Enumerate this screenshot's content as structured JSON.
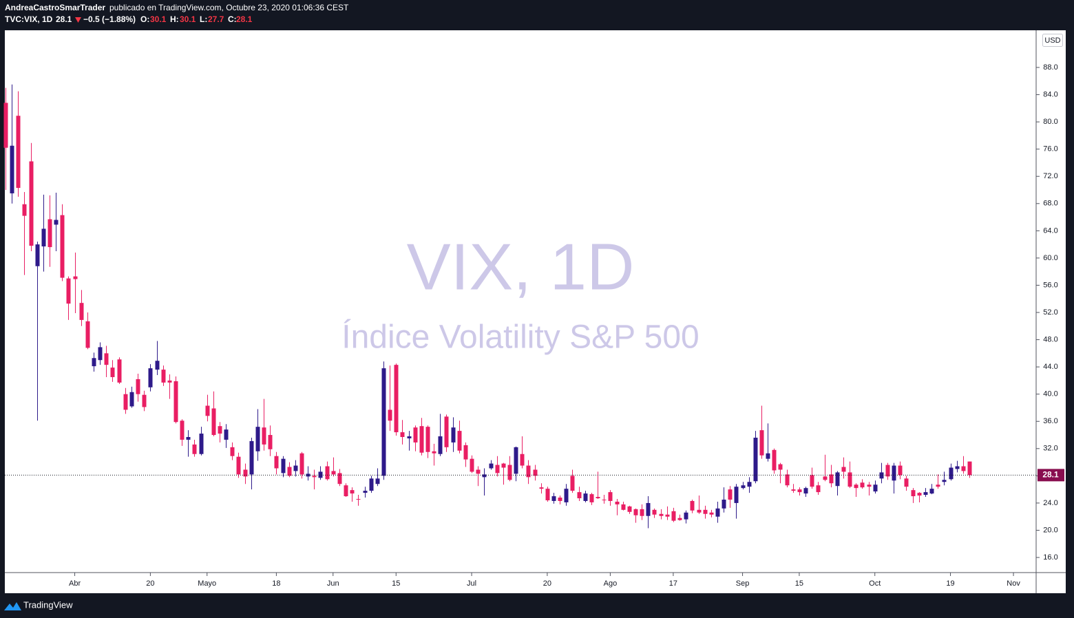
{
  "header": {
    "author": "AndreaCastroSmarTrader",
    "published": "publicado en TradingView.com, Octubre 23, 2020 01:06:36 CEST",
    "symbol": "TVC:VIX, 1D",
    "change": "−0.5 (−1.88%)",
    "open_label": "O:",
    "high_label": "H:",
    "low_label": "L:",
    "close_label": "C:"
  },
  "footer": {
    "brand": "TradingView"
  },
  "chart_data": {
    "type": "candlestick",
    "watermark_title": "VIX, 1D",
    "watermark_subtitle": "Índice Volatility S&P 500",
    "currency": "USD",
    "up_color": "#2e1a8a",
    "down_color": "#e91e63",
    "open": [
      82.8,
      69.5,
      80.9,
      67.9,
      74.2,
      58.8,
      61.7,
      65.7,
      64.9,
      66.3,
      57,
      57.3,
      53.4,
      50.7,
      44.1,
      45,
      46,
      43.9,
      45.1,
      40,
      38.2,
      42.2,
      39.9,
      41,
      43.6,
      43.6,
      42,
      41.9,
      36.1,
      33.3,
      32.6,
      31.2,
      38.3,
      37.9,
      35.3,
      33.3,
      32.2,
      30.8,
      28.9,
      28.2,
      31.6,
      35.1,
      34,
      30.9,
      28.4,
      29.3,
      28.7,
      31.3,
      27.9,
      28,
      27.7,
      29.4,
      28.7,
      28.4,
      26.6,
      25.9,
      24.6,
      25.5,
      25.8,
      26.8,
      28,
      37.7,
      44.3,
      34.4,
      33.5,
      35.1,
      35.3,
      35.2,
      31.6,
      31.2,
      36.7,
      32.9,
      34.6,
      32.5,
      30.5,
      28.9,
      27.8,
      29.1,
      29.6,
      29.8,
      29.6,
      28.3,
      31.2,
      29.5,
      28.9,
      26.3,
      26.1,
      24.3,
      24.8,
      24.1,
      28,
      25.6,
      24.3,
      25.3,
      24.9,
      24.5,
      25.6,
      24.2,
      23.8,
      23.5,
      23.1,
      23.1,
      22.1,
      23,
      22.4,
      22.3,
      22.8,
      21.8,
      21.6,
      24.3,
      23,
      23,
      22.6,
      22,
      23.2,
      26,
      24,
      26.2,
      26.4,
      27.2,
      34.7,
      30.5,
      31.8,
      29.7,
      28.2,
      26,
      26,
      25.4,
      28.1,
      26.6,
      27.9,
      28.2,
      26.5,
      29.3,
      28.5,
      26.7,
      27,
      26.7,
      25.7,
      27.6,
      29.6,
      27.3,
      29.5,
      27.6,
      25.9,
      25.5,
      25.2,
      25.4,
      26.7,
      27.1,
      27.5,
      29,
      29.4,
      30.1
    ],
    "high": [
      85,
      85.5,
      84.5,
      69.7,
      76.9,
      62.4,
      69.3,
      69.2,
      69.6,
      67.9,
      57.3,
      60.8,
      55.3,
      52,
      46.1,
      47.6,
      47.1,
      45,
      45.4,
      40.9,
      41.1,
      43,
      40.5,
      44.4,
      47.8,
      44.2,
      42.9,
      42.6,
      36.3,
      34.7,
      33.3,
      35.2,
      39.9,
      40.4,
      35.9,
      35.6,
      32.9,
      31.4,
      29.8,
      33.6,
      37.8,
      39.3,
      35.4,
      31.5,
      30.9,
      30,
      30.3,
      31.5,
      29.4,
      28.9,
      29.4,
      30.1,
      30.7,
      29,
      26.9,
      26.3,
      25.2,
      26.4,
      28,
      29.1,
      44.8,
      44.2,
      44.5,
      36.2,
      34.6,
      35.4,
      36.5,
      35.4,
      32.7,
      37.1,
      37,
      36.6,
      36.1,
      32.9,
      31,
      29.4,
      29.1,
      30.3,
      30.9,
      29.9,
      30.9,
      32.3,
      33.8,
      30.3,
      29.6,
      26.9,
      26.4,
      25.5,
      25.1,
      26.8,
      28.9,
      26.4,
      25.8,
      25.5,
      28.6,
      25.2,
      25.9,
      24.6,
      24.2,
      23.6,
      23.2,
      23.8,
      25,
      23.2,
      23.1,
      23.5,
      23.3,
      22.3,
      22.9,
      24.5,
      25.1,
      23.6,
      23,
      24.2,
      26.3,
      26.5,
      26.8,
      27.1,
      27.8,
      34.6,
      38.3,
      35.7,
      32,
      29.9,
      28.9,
      26.8,
      26.3,
      26.4,
      29.2,
      27.1,
      31.1,
      29.6,
      28.7,
      30.7,
      30.1,
      26.9,
      27.5,
      27.1,
      27.3,
      29.9,
      29.9,
      29.9,
      30.1,
      28,
      26.2,
      25.6,
      26.2,
      26.8,
      28.2,
      28.6,
      29.8,
      30.2,
      30.9,
      30.1
    ],
    "low": [
      70,
      68,
      69,
      57.5,
      61,
      36.1,
      58,
      58.7,
      61,
      56.6,
      50.9,
      51.9,
      50,
      46.6,
      43.3,
      44.3,
      42.5,
      41.8,
      41.5,
      37.1,
      38,
      38.9,
      37.5,
      40.4,
      42.8,
      41.2,
      39.3,
      35.7,
      32.4,
      30.8,
      30.8,
      31,
      36,
      33.8,
      32.9,
      32.1,
      30.3,
      27.7,
      26.8,
      26,
      30.2,
      31.7,
      30.9,
      28.2,
      27.8,
      27.8,
      27.9,
      27.6,
      27.3,
      26,
      27.4,
      27.3,
      27.9,
      26.5,
      24.9,
      24.2,
      23.6,
      24.8,
      25.5,
      26.5,
      27.4,
      34.6,
      33.9,
      32.6,
      31.7,
      31.6,
      31,
      30.6,
      29.5,
      30.9,
      31.5,
      31.5,
      31.3,
      29.3,
      28.4,
      26.5,
      25.1,
      28.9,
      27.9,
      26.7,
      27.2,
      27.2,
      29.1,
      26.8,
      27.3,
      25.4,
      24.2,
      23.9,
      23.8,
      23.6,
      25.5,
      24.3,
      24.1,
      23.7,
      24.6,
      23.9,
      23.6,
      22.2,
      22.9,
      22.4,
      21.1,
      21.5,
      20.3,
      21.8,
      21.6,
      21.5,
      21.2,
      21.4,
      21,
      22.5,
      22.4,
      21.7,
      21.9,
      21.1,
      22.6,
      23.3,
      21.7,
      26,
      25.5,
      26.9,
      30.5,
      30.1,
      28.3,
      26.9,
      26.3,
      25.5,
      25.1,
      24.9,
      26.1,
      25.2,
      27.2,
      26.3,
      25.1,
      27.6,
      26.2,
      24.9,
      26.1,
      25.1,
      25.4,
      26.9,
      27.4,
      25.4,
      27.5,
      25.8,
      24,
      24.1,
      24.9,
      25.3,
      26.1,
      26.6,
      27.3,
      28.5,
      28.3,
      27.7
    ],
    "close": [
      76.2,
      76.5,
      70.3,
      66.2,
      61.8,
      62,
      64.3,
      61.6,
      65.6,
      57.1,
      53.3,
      56.9,
      50.9,
      46.8,
      45.3,
      46.9,
      44.3,
      42.5,
      41.7,
      37.7,
      40.3,
      40,
      38.1,
      43.8,
      44.9,
      41.7,
      41.7,
      35.9,
      33.3,
      33.7,
      31.2,
      34.2,
      36.8,
      34,
      34.2,
      34.8,
      30.9,
      28.2,
      27.9,
      33.1,
      35.2,
      32.6,
      31.9,
      29.1,
      30.5,
      28,
      29.5,
      28.2,
      28.3,
      27.8,
      28.6,
      27.5,
      28.2,
      26.8,
      25,
      25.4,
      24.5,
      25.8,
      27.6,
      27.6,
      43.8,
      36.1,
      34.4,
      33.7,
      33.8,
      32.9,
      31.4,
      31.5,
      31.3,
      33.8,
      32.2,
      35.1,
      31.7,
      30.4,
      28.6,
      28.3,
      28.2,
      29.8,
      28.4,
      29.2,
      27.4,
      32.2,
      29.5,
      27.8,
      28,
      26.1,
      24.4,
      25,
      24.3,
      26.1,
      25.8,
      24.7,
      25.4,
      24.1,
      24.7,
      24.4,
      24.3,
      23.8,
      23,
      22.7,
      22.2,
      22.1,
      24,
      22.3,
      22.1,
      22,
      21.4,
      21.5,
      22.6,
      22.9,
      22.6,
      22.4,
      22.3,
      23.2,
      24.5,
      24.5,
      26.4,
      26.6,
      27.1,
      33.6,
      31,
      31.3,
      28.8,
      28.9,
      26.6,
      25.8,
      25.6,
      26.2,
      26.4,
      25.6,
      27.4,
      26.9,
      28.5,
      28.6,
      26.4,
      26.2,
      26.3,
      26.4,
      26.7,
      28.5,
      27.9,
      29.5,
      28.1,
      26.4,
      25,
      25.1,
      25.6,
      26.1,
      26.4,
      27.4,
      29.2,
      29.4,
      28.7,
      28.1
    ],
    "xlim": [
      -0.1,
      163.6
    ],
    "xticks": [
      {
        "value": 11,
        "label": "Abr"
      },
      {
        "value": 23,
        "label": "20"
      },
      {
        "value": 32,
        "label": "Mayo"
      },
      {
        "value": 43,
        "label": "18"
      },
      {
        "value": 52,
        "label": "Jun"
      },
      {
        "value": 62,
        "label": "15"
      },
      {
        "value": 74,
        "label": "Jul"
      },
      {
        "value": 86,
        "label": "20"
      },
      {
        "value": 96,
        "label": "Ago"
      },
      {
        "value": 106,
        "label": "17"
      },
      {
        "value": 117,
        "label": "Sep"
      },
      {
        "value": 126,
        "label": "15"
      },
      {
        "value": 138,
        "label": "Oct"
      },
      {
        "value": 150,
        "label": "19"
      },
      {
        "value": 160,
        "label": "Nov"
      }
    ],
    "ylim": [
      13.78,
      93.46
    ],
    "yticks": [
      {
        "value": 16,
        "label": "16.0"
      },
      {
        "value": 20,
        "label": "20.0"
      },
      {
        "value": 24,
        "label": "24.0"
      },
      {
        "value": 28,
        "label": "28.0"
      },
      {
        "value": 32,
        "label": "32.0"
      },
      {
        "value": 36,
        "label": "36.0"
      },
      {
        "value": 40,
        "label": "40.0"
      },
      {
        "value": 44,
        "label": "44.0"
      },
      {
        "value": 48,
        "label": "48.0"
      },
      {
        "value": 52,
        "label": "52.0"
      },
      {
        "value": 56,
        "label": "56.0"
      },
      {
        "value": 60,
        "label": "60.0"
      },
      {
        "value": 64,
        "label": "64.0"
      },
      {
        "value": 68,
        "label": "68.0"
      },
      {
        "value": 72,
        "label": "72.0"
      },
      {
        "value": 76,
        "label": "76.0"
      },
      {
        "value": 80,
        "label": "80.0"
      },
      {
        "value": 84,
        "label": "84.0"
      },
      {
        "value": 88,
        "label": "88.0"
      }
    ]
  }
}
